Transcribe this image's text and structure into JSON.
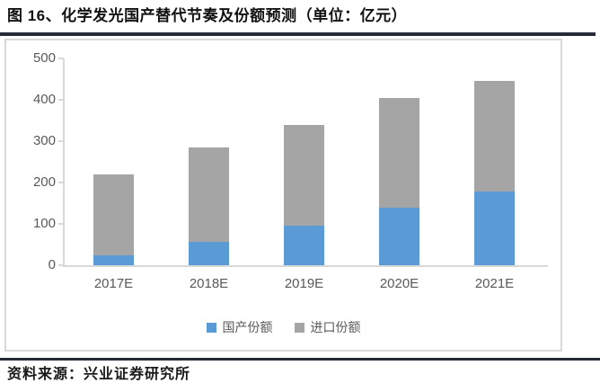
{
  "title": "图 16、化学发光国产替代节奏及份额预测（单位：亿元）",
  "source": "资料来源：兴业证券研究所",
  "colors": {
    "domestic_blue": "#5b9bd5",
    "import_gray": "#a5a5a5",
    "axis_gray": "#d9d9d9",
    "tick_text_gray": "#595959",
    "rule_dark": "#262b38"
  },
  "chart_data": {
    "type": "bar",
    "stacked": true,
    "title": "化学发光国产替代节奏及份额预测",
    "unit": "亿元",
    "categories": [
      "2017E",
      "2018E",
      "2019E",
      "2020E",
      "2021E"
    ],
    "series": [
      {
        "name": "国产份额",
        "color": "#5b9bd5",
        "values": [
          25,
          57,
          95,
          140,
          178
        ]
      },
      {
        "name": "进口份额",
        "color": "#a5a5a5",
        "values": [
          195,
          228,
          245,
          265,
          267
        ]
      }
    ],
    "stack_totals": [
      220,
      285,
      340,
      405,
      445
    ],
    "ylim": [
      0,
      500
    ],
    "yticks": [
      0,
      100,
      200,
      300,
      400,
      500
    ],
    "xlabel": "",
    "ylabel": "",
    "grid": false,
    "legend_position": "bottom"
  }
}
